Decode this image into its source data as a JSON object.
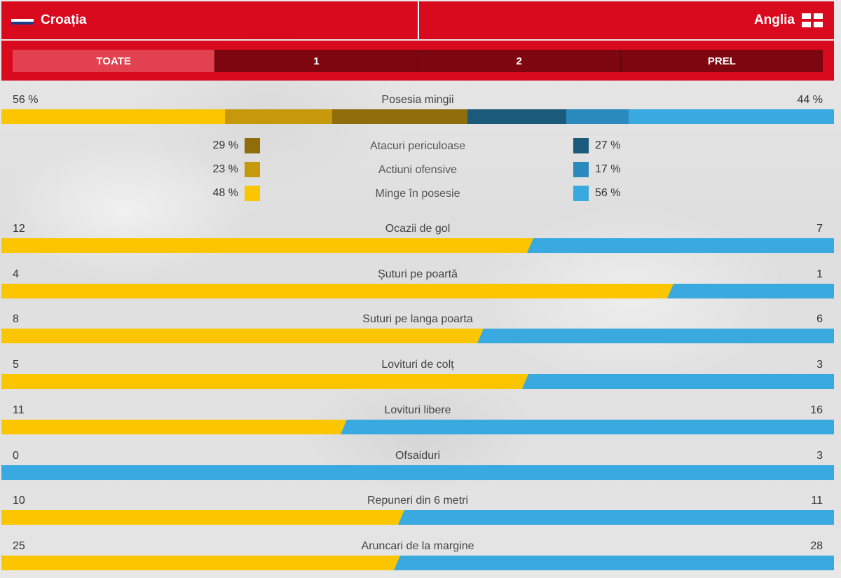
{
  "header": {
    "home_team": "Croația",
    "away_team": "Anglia",
    "home_flag": "croatia-flag",
    "away_flag": "england-flag",
    "color": "#d90a1e"
  },
  "tabs": [
    {
      "label": "TOATE",
      "active": true
    },
    {
      "label": "1",
      "active": false
    },
    {
      "label": "2",
      "active": false
    },
    {
      "label": "PREL",
      "active": false
    }
  ],
  "colors": {
    "home": "#fbc600",
    "away": "#3aa9e0",
    "home_dark": "#8e6d0a",
    "home_mid": "#c5990b",
    "away_dark": "#1b5a7a",
    "away_mid": "#2b8abd"
  },
  "possession": {
    "label": "Posesia mingii",
    "home": "56 %",
    "away": "44 %",
    "home_pct": 56,
    "away_pct": 44,
    "segments": {
      "home": [
        48,
        23,
        29
      ],
      "away": [
        27,
        17,
        56
      ]
    }
  },
  "breakdown": [
    {
      "label": "Atacuri periculoase",
      "home": "29 %",
      "away": "27 %",
      "home_color": "#8e6d0a",
      "away_color": "#1b5a7a"
    },
    {
      "label": "Actiuni ofensive",
      "home": "23 %",
      "away": "17 %",
      "home_color": "#c5990b",
      "away_color": "#2b8abd"
    },
    {
      "label": "Minge în posesie",
      "home": "48 %",
      "away": "56 %",
      "home_color": "#fbc600",
      "away_color": "#3aa9e0"
    }
  ],
  "stats": [
    {
      "label": "Ocazii de gol",
      "home": 12,
      "away": 7
    },
    {
      "label": "Șuturi pe poartă",
      "home": 4,
      "away": 1
    },
    {
      "label": "Suturi pe langa poarta",
      "home": 8,
      "away": 6
    },
    {
      "label": "Lovituri de colț",
      "home": 5,
      "away": 3
    },
    {
      "label": "Lovituri libere",
      "home": 11,
      "away": 16
    },
    {
      "label": "Ofsaiduri",
      "home": 0,
      "away": 3
    },
    {
      "label": "Repuneri din 6 metri",
      "home": 10,
      "away": 11
    },
    {
      "label": "Aruncari de la margine",
      "home": 25,
      "away": 28
    }
  ]
}
